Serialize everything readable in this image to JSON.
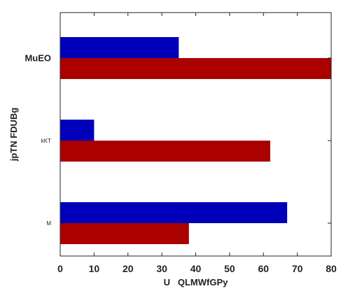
{
  "chart_data": {
    "type": "bar",
    "orientation": "horizontal",
    "categories": [
      "MuEO",
      "kKT",
      "M"
    ],
    "series": [
      {
        "values": [
          35,
          10,
          67
        ],
        "color": "#0000bb"
      },
      {
        "values": [
          80,
          62,
          38
        ],
        "color": "#aa0000"
      }
    ],
    "xlabel": "U   QLMWfGPy",
    "ylabel": "jpTN FDUBg",
    "xlim": [
      0,
      80
    ],
    "xticks": [
      0,
      10,
      20,
      30,
      40,
      50,
      60,
      70,
      80
    ],
    "grid": false
  }
}
